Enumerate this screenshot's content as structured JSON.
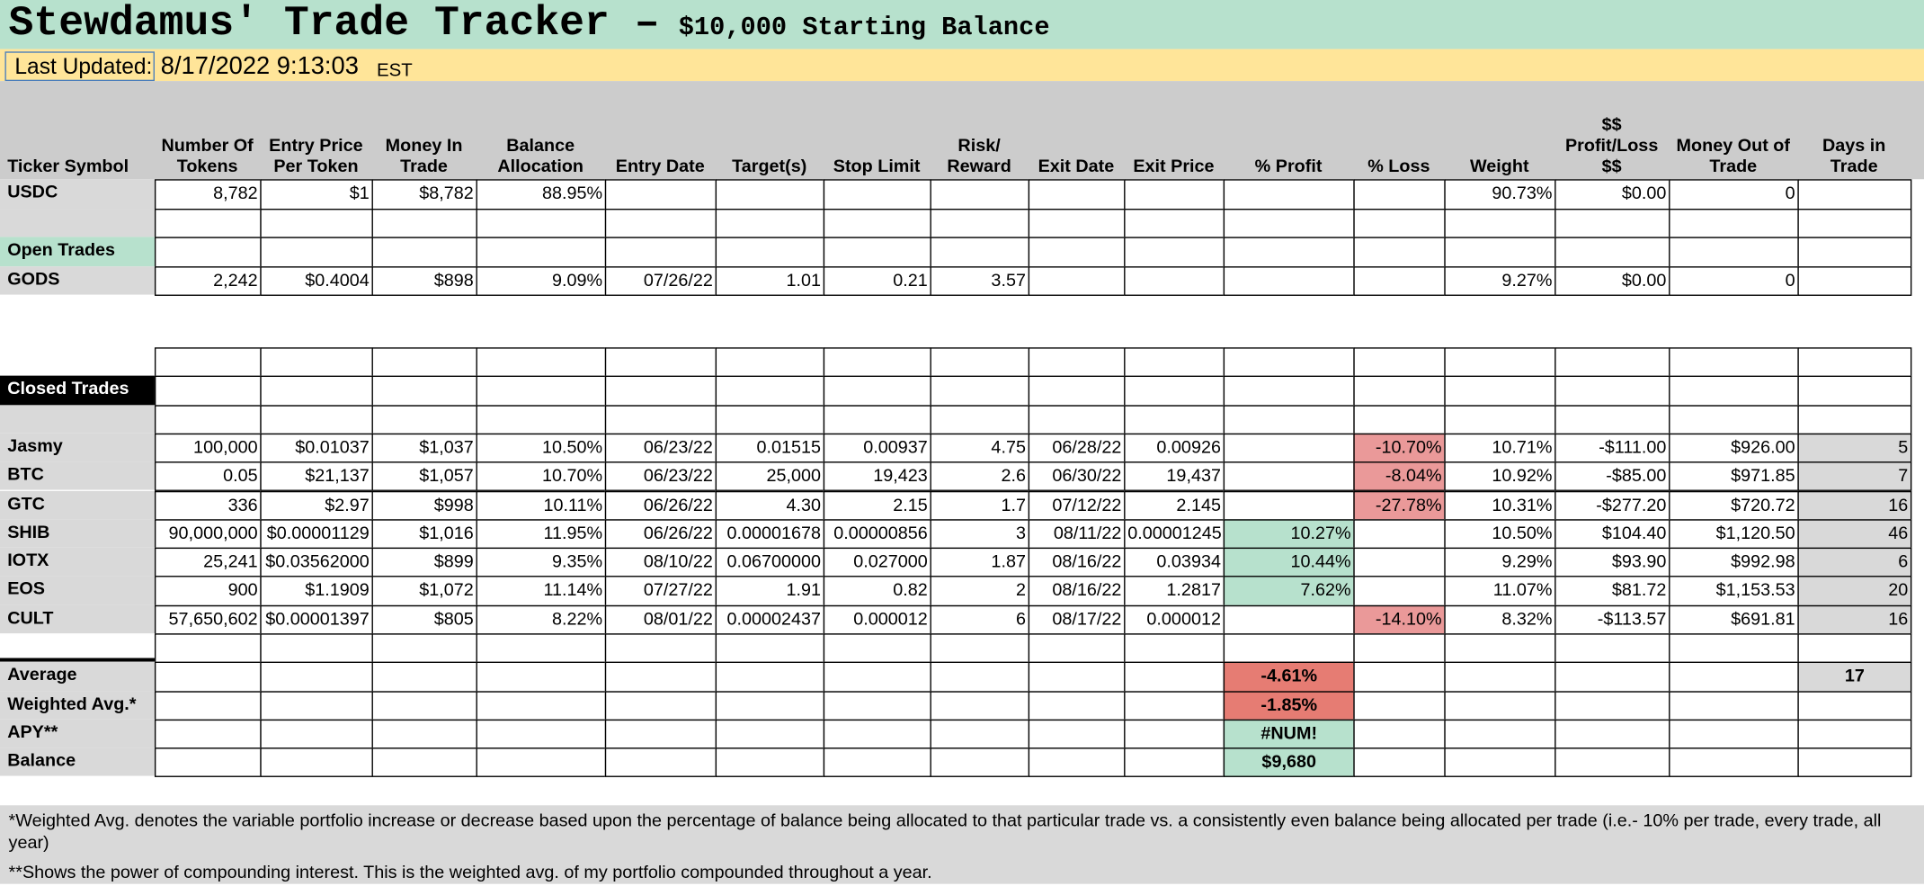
{
  "header": {
    "title": "Stewdamus' Trade Tracker –",
    "subtitle": "$10,000 Starting Balance"
  },
  "last_updated": {
    "label": "Last Updated:",
    "value": "8/17/2022 9:13:03",
    "timezone": "EST"
  },
  "table": {
    "columns": [
      "Ticker Symbol",
      "Number Of Tokens",
      "Entry Price Per Token",
      "Money In Trade",
      "Balance Allocation",
      "Entry Date",
      "Target(s)",
      "Stop Limit",
      "Risk/ Reward",
      "Exit Date",
      "Exit Price",
      "% Profit",
      "% Loss",
      "Weight",
      "$$ Profit/Loss $$",
      "Money Out of Trade",
      "Days in Trade"
    ],
    "rows": [
      [
        "USDC",
        "8,782",
        "$1",
        "$8,782",
        "88.95%",
        null,
        null,
        null,
        null,
        null,
        null,
        null,
        null,
        "90.73%",
        "$0.00",
        "0",
        null
      ],
      [
        null,
        null,
        null,
        null,
        null,
        null,
        null,
        null,
        null,
        null,
        null,
        null,
        null,
        null,
        null,
        null,
        null
      ],
      [
        "Open Trades",
        null,
        null,
        null,
        null,
        null,
        null,
        null,
        null,
        null,
        null,
        null,
        null,
        null,
        null,
        null,
        null
      ],
      [
        "GODS",
        "2,242",
        "$0.4004",
        "$898",
        "9.09%",
        "07/26/22",
        "1.01",
        "0.21",
        "3.57",
        null,
        null,
        null,
        null,
        "9.27%",
        "$0.00",
        "0",
        null
      ],
      [
        null,
        null,
        null,
        null,
        null,
        null,
        null,
        null,
        null,
        null,
        null,
        null,
        null,
        null,
        null,
        null,
        null
      ],
      [
        "Closed Trades",
        null,
        null,
        null,
        null,
        null,
        null,
        null,
        null,
        null,
        null,
        null,
        null,
        null,
        null,
        null,
        null
      ],
      [
        null,
        null,
        null,
        null,
        null,
        null,
        null,
        null,
        null,
        null,
        null,
        null,
        null,
        null,
        null,
        null,
        null
      ],
      [
        "Jasmy",
        "100,000",
        "$0.01037",
        "$1,037",
        "10.50%",
        "06/23/22",
        "0.01515",
        "0.00937",
        "4.75",
        "06/28/22",
        "0.00926",
        null,
        "-10.70%",
        "10.71%",
        "-$111.00",
        "$926.00",
        "5"
      ],
      [
        "BTC",
        "0.05",
        "$21,137",
        "$1,057",
        "10.70%",
        "06/23/22",
        "25,000",
        "19,423",
        "2.6",
        "06/30/22",
        "19,437",
        null,
        "-8.04%",
        "10.92%",
        "-$85.00",
        "$971.85",
        "7"
      ],
      [
        "GTC",
        "336",
        "$2.97",
        "$998",
        "10.11%",
        "06/26/22",
        "4.30",
        "2.15",
        "1.7",
        "07/12/22",
        "2.145",
        null,
        "-27.78%",
        "10.31%",
        "-$277.20",
        "$720.72",
        "16"
      ],
      [
        "SHIB",
        "90,000,000",
        "$0.00001129",
        "$1,016",
        "11.95%",
        "06/26/22",
        "0.00001678",
        "0.00000856",
        "3",
        "08/11/22",
        "0.00001245",
        "10.27%",
        null,
        "10.50%",
        "$104.40",
        "$1,120.50",
        "46"
      ],
      [
        "IOTX",
        "25,241",
        "$0.03562000",
        "$899",
        "9.35%",
        "08/10/22",
        "0.06700000",
        "0.027000",
        "1.87",
        "08/16/22",
        "0.03934",
        "10.44%",
        null,
        "9.29%",
        "$93.90",
        "$992.98",
        "6"
      ],
      [
        "EOS",
        "900",
        "$1.1909",
        "$1,072",
        "11.14%",
        "07/27/22",
        "1.91",
        "0.82",
        "2",
        "08/16/22",
        "1.2817",
        "7.62%",
        null,
        "11.07%",
        "$81.72",
        "$1,153.53",
        "20"
      ],
      [
        "CULT",
        "57,650,602",
        "$0.00001397",
        "$805",
        "8.22%",
        "08/01/22",
        "0.00002437",
        "0.000012",
        "6",
        "08/17/22",
        "0.000012",
        null,
        "-14.10%",
        "8.32%",
        "-$113.57",
        "$691.81",
        "16"
      ],
      [
        null,
        null,
        null,
        null,
        null,
        null,
        null,
        null,
        null,
        null,
        null,
        null,
        null,
        null,
        null,
        null,
        null
      ],
      [
        "Average",
        null,
        null,
        null,
        null,
        null,
        null,
        null,
        null,
        null,
        null,
        "-4.61%",
        null,
        null,
        null,
        null,
        "17"
      ],
      [
        "Weighted Avg.*",
        null,
        null,
        null,
        null,
        null,
        null,
        null,
        null,
        null,
        null,
        "-1.85%",
        null,
        null,
        null,
        null,
        null
      ],
      [
        "APY**",
        null,
        null,
        null,
        null,
        null,
        null,
        null,
        null,
        null,
        null,
        "#NUM!",
        null,
        null,
        null,
        null,
        null
      ],
      [
        "Balance",
        null,
        null,
        null,
        null,
        null,
        null,
        null,
        null,
        null,
        null,
        "$9,680",
        null,
        null,
        null,
        null,
        null
      ]
    ]
  },
  "footnotes": [
    "*Weighted Avg. denotes the variable portfolio increase or decrease based upon the percentage of balance being allocated to that particular trade vs. a consistently even balance being allocated per trade (i.e.- 10% per trade, every trade, all year)",
    "**Shows the power of compounding interest. This is the weighted avg. of my portfolio compounded throughout a year."
  ]
}
